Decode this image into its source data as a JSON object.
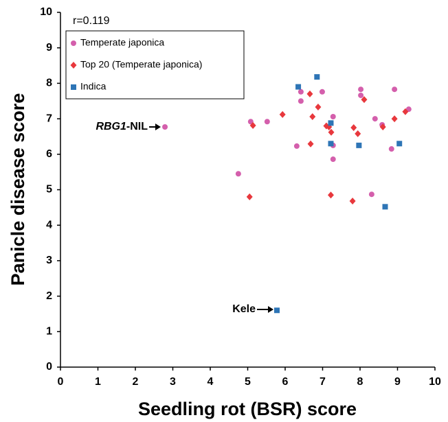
{
  "chart_data": {
    "type": "scatter",
    "xlabel": "Seedling rot (BSR) score",
    "ylabel": "Panicle disease score",
    "xlim": [
      0,
      10
    ],
    "ylim": [
      0,
      10
    ],
    "xticks": [
      0,
      1,
      2,
      3,
      4,
      5,
      6,
      7,
      8,
      9,
      10
    ],
    "yticks": [
      0,
      1,
      2,
      3,
      4,
      5,
      6,
      7,
      8,
      9,
      10
    ],
    "grid": false,
    "legend": "upper left",
    "annotations": [
      "r=0.119",
      "RBG1",
      "-NIL",
      "Kele"
    ],
    "series": [
      {
        "name": "Temperate japonica",
        "color": "#d45fac",
        "marker": "circle",
        "x": [
          2.79,
          4.75,
          5.08,
          5.52,
          6.31,
          6.42,
          6.42,
          6.99,
          7.28,
          7.28,
          7.28,
          8.02,
          8.02,
          8.4,
          8.59,
          8.92,
          8.84,
          8.31,
          9.3
        ],
        "values": [
          6.77,
          5.45,
          6.92,
          6.92,
          6.23,
          7.76,
          7.5,
          7.76,
          7.06,
          6.25,
          5.86,
          7.83,
          7.66,
          7.0,
          6.83,
          7.83,
          6.15,
          4.87,
          7.27
        ]
      },
      {
        "name": "Top 20 (Temperate japonica)",
        "color": "#e8383d",
        "marker": "diamond",
        "x": [
          5.14,
          5.05,
          5.93,
          6.66,
          6.68,
          6.73,
          6.88,
          7.1,
          7.17,
          7.23,
          7.22,
          7.8,
          7.83,
          7.94,
          8.11,
          8.61,
          8.92,
          9.21
        ],
        "values": [
          6.81,
          4.8,
          7.12,
          7.7,
          6.29,
          7.06,
          7.33,
          6.8,
          6.77,
          6.62,
          4.85,
          4.68,
          6.75,
          6.58,
          7.54,
          6.77,
          7.0,
          7.2
        ]
      },
      {
        "name": "Indica",
        "color": "#2e75b6",
        "marker": "square",
        "x": [
          6.35,
          6.85,
          7.22,
          7.22,
          7.97,
          9.05,
          8.67,
          5.78
        ],
        "values": [
          7.9,
          8.18,
          6.88,
          6.3,
          6.25,
          6.3,
          4.52,
          1.6
        ]
      }
    ]
  }
}
